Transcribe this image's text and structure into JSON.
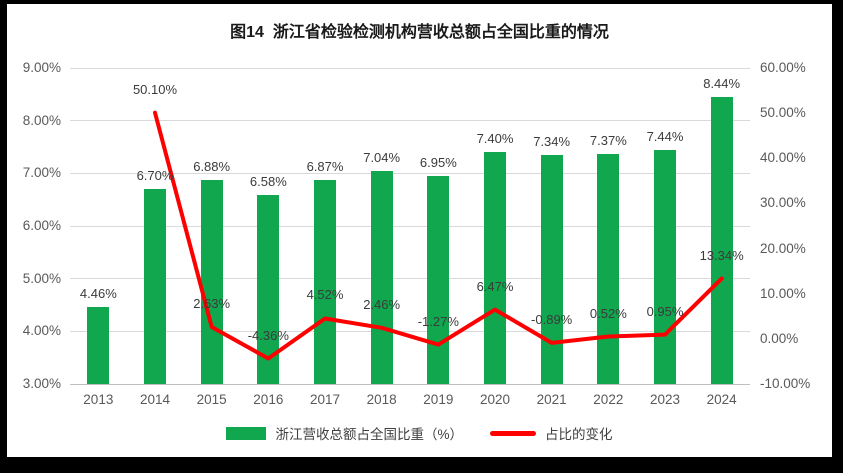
{
  "chart_data": {
    "type": "combo-bar-line",
    "title": "图14  浙江省检验检测机构营收总额占全国比重的情况",
    "categories": [
      "2013",
      "2014",
      "2015",
      "2016",
      "2017",
      "2018",
      "2019",
      "2020",
      "2021",
      "2022",
      "2023",
      "2024"
    ],
    "series": [
      {
        "name": "浙江营收总额占全国比重（%）",
        "type": "bar",
        "axis": "left",
        "color": "#10a74e",
        "values": [
          4.46,
          6.7,
          6.88,
          6.58,
          6.87,
          7.04,
          6.95,
          7.4,
          7.34,
          7.37,
          7.44,
          8.44
        ],
        "labels": [
          "4.46%",
          "6.70%",
          "6.88%",
          "6.58%",
          "6.87%",
          "7.04%",
          "6.95%",
          "7.40%",
          "7.34%",
          "7.37%",
          "7.44%",
          "8.44%"
        ]
      },
      {
        "name": "占比的变化",
        "type": "line",
        "axis": "right",
        "color": "#fe0000",
        "values": [
          null,
          50.1,
          2.63,
          -4.36,
          4.52,
          2.46,
          -1.27,
          6.47,
          -0.89,
          0.52,
          0.95,
          13.34
        ],
        "labels": [
          null,
          "50.10%",
          "2.63%",
          "-4.36%",
          "4.52%",
          "2.46%",
          "-1.27%",
          "6.47%",
          "-0.89%",
          "0.52%",
          "0.95%",
          "13.34%"
        ]
      }
    ],
    "left_axis": {
      "min": 3,
      "max": 9,
      "step": 1,
      "tick_labels": [
        "3.00%",
        "4.00%",
        "5.00%",
        "6.00%",
        "7.00%",
        "8.00%",
        "9.00%"
      ]
    },
    "right_axis": {
      "min": -10,
      "max": 60,
      "step": 10,
      "tick_labels": [
        "-10.00%",
        "0.00%",
        "10.00%",
        "20.00%",
        "30.00%",
        "40.00%",
        "50.00%",
        "60.00%"
      ]
    },
    "grid": true,
    "legend_position": "bottom"
  }
}
